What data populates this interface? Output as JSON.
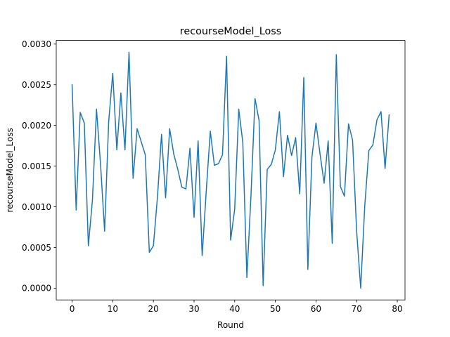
{
  "chart_data": {
    "type": "line",
    "title": "recourseModel_Loss",
    "xlabel": "Round",
    "ylabel": "recourseModel_Loss",
    "xlim": [
      -3.9,
      81.9
    ],
    "ylim": [
      -0.000145,
      0.003045
    ],
    "x_ticks": [
      0,
      10,
      20,
      30,
      40,
      50,
      60,
      70,
      80
    ],
    "x_tick_labels": [
      "0",
      "10",
      "20",
      "30",
      "40",
      "50",
      "60",
      "70",
      "80"
    ],
    "y_ticks": [
      0.0,
      0.0005,
      0.001,
      0.0015,
      0.002,
      0.0025,
      0.003
    ],
    "y_tick_labels": [
      "0.0000",
      "0.0005",
      "0.0010",
      "0.0015",
      "0.0020",
      "0.0025",
      "0.0030"
    ],
    "grid": false,
    "legend": "none",
    "series": [
      {
        "color": "#1f77b4",
        "x": [
          0,
          1,
          2,
          3,
          4,
          5,
          6,
          7,
          8,
          9,
          10,
          11,
          12,
          13,
          14,
          15,
          16,
          17,
          18,
          19,
          20,
          21,
          22,
          23,
          24,
          25,
          26,
          27,
          28,
          29,
          30,
          31,
          32,
          33,
          34,
          35,
          36,
          37,
          38,
          39,
          40,
          41,
          42,
          43,
          44,
          45,
          46,
          47,
          48,
          49,
          50,
          51,
          52,
          53,
          54,
          55,
          56,
          57,
          58,
          59,
          60,
          61,
          62,
          63,
          64,
          65,
          66,
          67,
          68,
          69,
          70,
          71,
          72,
          73,
          74,
          75,
          76,
          77,
          78
        ],
        "values": [
          0.0025,
          0.00096,
          0.00216,
          0.00203,
          0.00052,
          0.00108,
          0.0022,
          0.00152,
          0.0007,
          0.00205,
          0.00264,
          0.0017,
          0.0024,
          0.0017,
          0.0029,
          0.00135,
          0.00196,
          0.0018,
          0.00164,
          0.00044,
          0.00052,
          0.00112,
          0.00189,
          0.00111,
          0.00196,
          0.00165,
          0.00146,
          0.00124,
          0.00122,
          0.00172,
          0.00087,
          0.00181,
          0.0004,
          0.00119,
          0.00193,
          0.00151,
          0.00153,
          0.00164,
          0.00285,
          0.00059,
          0.00097,
          0.0022,
          0.00179,
          0.00013,
          0.00113,
          0.00233,
          0.00206,
          3e-05,
          0.00146,
          0.00152,
          0.0017,
          0.00217,
          0.00137,
          0.00188,
          0.00163,
          0.00185,
          0.00116,
          0.00259,
          0.00023,
          0.00161,
          0.00203,
          0.00165,
          0.00129,
          0.00181,
          0.00055,
          0.00287,
          0.00125,
          0.00113,
          0.00202,
          0.00182,
          0.0007,
          0.0,
          0.00101,
          0.00169,
          0.00176,
          0.00207,
          0.00217,
          0.00147,
          0.00213
        ]
      }
    ]
  }
}
